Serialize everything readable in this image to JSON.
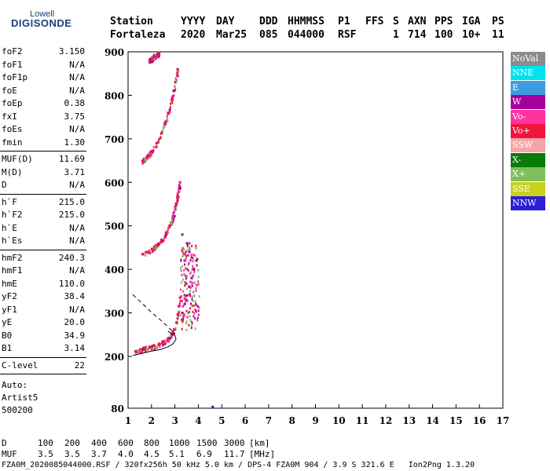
{
  "logo": {
    "top": "Lowell",
    "bottom": "DIGISONDE"
  },
  "header": {
    "labels": [
      "Station",
      "YYYY",
      "DAY",
      "DDD",
      "HHMMSS",
      "P1",
      "FFS",
      "S",
      "AXN",
      "PPS",
      "IGA",
      "PS"
    ],
    "values": [
      "Fortaleza",
      "2020",
      "Mar25",
      "085",
      "044000",
      "RSF",
      "",
      "1",
      "714",
      "100",
      "10+",
      "11"
    ]
  },
  "params": {
    "group1": [
      {
        "k": "foF2",
        "v": "3.150"
      },
      {
        "k": "foF1",
        "v": "N/A"
      },
      {
        "k": "foF1p",
        "v": "N/A"
      },
      {
        "k": "foE",
        "v": "N/A"
      },
      {
        "k": "foEp",
        "v": "0.38"
      },
      {
        "k": "fxI",
        "v": "3.75"
      },
      {
        "k": "foEs",
        "v": "N/A"
      },
      {
        "k": "fmin",
        "v": "1.30"
      }
    ],
    "group2": [
      {
        "k": "MUF(D)",
        "v": "11.69"
      },
      {
        "k": "M(D)",
        "v": "3.71"
      },
      {
        "k": "D",
        "v": "N/A"
      }
    ],
    "group3": [
      {
        "k": "h`F",
        "v": "215.0"
      },
      {
        "k": "h`F2",
        "v": "215.0"
      },
      {
        "k": "h`E",
        "v": "N/A"
      },
      {
        "k": "h`Es",
        "v": "N/A"
      }
    ],
    "group4": [
      {
        "k": "hmF2",
        "v": "240.3"
      },
      {
        "k": "hmF1",
        "v": "N/A"
      },
      {
        "k": "hmE",
        "v": "110.0"
      },
      {
        "k": "yF2",
        "v": "38.4"
      },
      {
        "k": "yF1",
        "v": "N/A"
      },
      {
        "k": "yE",
        "v": "20.0"
      },
      {
        "k": "B0",
        "v": "34.9"
      },
      {
        "k": "B1",
        "v": "3.14"
      }
    ],
    "clevel": {
      "k": "C-level",
      "v": "22"
    },
    "auto": [
      "Auto:",
      "Artist5",
      "500200"
    ]
  },
  "legend": [
    {
      "label": "NoVal",
      "color": "#8c8c8c"
    },
    {
      "label": "NNE",
      "color": "#00e1f0"
    },
    {
      "label": "E",
      "color": "#3d9be0"
    },
    {
      "label": "W",
      "color": "#a8009c"
    },
    {
      "label": "Vo-",
      "color": "#ff33a0"
    },
    {
      "label": "Vo+",
      "color": "#f0143c"
    },
    {
      "label": "SSW",
      "color": "#f4a6a6"
    },
    {
      "label": "X-",
      "color": "#0a7a0a"
    },
    {
      "label": "X+",
      "color": "#7ebf5a"
    },
    {
      "label": "SSE",
      "color": "#c8d21e"
    },
    {
      "label": "NNW",
      "color": "#2a1ed6"
    }
  ],
  "footer": {
    "d_label": "D",
    "d_values": [
      "100",
      "200",
      "400",
      "600",
      "800",
      "1000",
      "1500",
      "3000"
    ],
    "d_unit": "[km]",
    "muf_label": "MUF",
    "muf_values": [
      "3.5",
      "3.5",
      "3.7",
      "4.0",
      "4.5",
      "5.1",
      "6.9",
      "11.7"
    ],
    "muf_unit": "[MHz]",
    "info": "FZA0M_2020085044000.RSF / 320fx256h 50 kHz 5.0 km / DPS-4 FZA0M 904 / 3.9 S 321.6 E   Ion2Png 1.3.20"
  },
  "chart_data": {
    "type": "scatter",
    "title": "",
    "xlabel": "",
    "ylabel": "",
    "xlim": [
      1,
      17
    ],
    "ylim": [
      80,
      900
    ],
    "x_ticks": [
      1,
      2,
      3,
      4,
      5,
      6,
      7,
      8,
      9,
      10,
      11,
      12,
      13,
      14,
      15,
      16,
      17
    ],
    "y_ticks": [
      80,
      200,
      300,
      400,
      500,
      600,
      700,
      800,
      900
    ],
    "grid": false,
    "legend_position": "right",
    "traces": [
      {
        "name": "O-trace F2",
        "points": [
          [
            1.3,
            212
          ],
          [
            1.5,
            216
          ],
          [
            1.7,
            219
          ],
          [
            1.9,
            222
          ],
          [
            2.1,
            225
          ],
          [
            2.3,
            229
          ],
          [
            2.5,
            234
          ],
          [
            2.7,
            242
          ],
          [
            2.85,
            252
          ],
          [
            2.95,
            262
          ],
          [
            3.05,
            278
          ],
          [
            3.1,
            296
          ],
          [
            3.15,
            315
          ],
          [
            3.2,
            335
          ]
        ]
      },
      {
        "name": "O-trace 2F",
        "points": [
          [
            1.6,
            435
          ],
          [
            1.8,
            440
          ],
          [
            2.0,
            447
          ],
          [
            2.2,
            456
          ],
          [
            2.4,
            467
          ],
          [
            2.6,
            483
          ],
          [
            2.75,
            500
          ],
          [
            2.9,
            522
          ],
          [
            3.0,
            545
          ],
          [
            3.1,
            570
          ],
          [
            3.2,
            600
          ]
        ]
      },
      {
        "name": "O-trace 3F",
        "points": [
          [
            1.6,
            650
          ],
          [
            1.8,
            660
          ],
          [
            2.0,
            672
          ],
          [
            2.2,
            690
          ],
          [
            2.4,
            712
          ],
          [
            2.55,
            735
          ],
          [
            2.7,
            760
          ],
          [
            2.85,
            790
          ],
          [
            3.0,
            830
          ],
          [
            3.1,
            860
          ]
        ]
      },
      {
        "name": "Top trace",
        "points": [
          [
            1.9,
            880
          ],
          [
            2.1,
            890
          ],
          [
            2.3,
            898
          ]
        ]
      },
      {
        "name": "Spread F",
        "points": [
          [
            3.3,
            300
          ],
          [
            3.4,
            320
          ],
          [
            3.5,
            340
          ],
          [
            3.6,
            360
          ],
          [
            3.7,
            380
          ],
          [
            3.8,
            400
          ],
          [
            3.4,
            420
          ],
          [
            3.6,
            440
          ],
          [
            3.9,
            420
          ],
          [
            3.5,
            460
          ],
          [
            3.3,
            480
          ]
        ]
      }
    ],
    "profile_solid": [
      [
        1.2,
        202
      ],
      [
        1.6,
        207
      ],
      [
        2.0,
        212
      ],
      [
        2.4,
        216
      ],
      [
        2.7,
        222
      ],
      [
        2.9,
        228
      ],
      [
        3.0,
        235
      ],
      [
        3.05,
        240
      ],
      [
        3.0,
        248
      ],
      [
        2.7,
        258
      ]
    ],
    "profile_dashed": [
      [
        1.2,
        342
      ],
      [
        1.6,
        322
      ],
      [
        2.0,
        301
      ],
      [
        2.4,
        283
      ],
      [
        2.7,
        268
      ],
      [
        2.9,
        258
      ],
      [
        3.0,
        252
      ]
    ],
    "outlier": [
      [
        4.6,
        84
      ]
    ]
  }
}
